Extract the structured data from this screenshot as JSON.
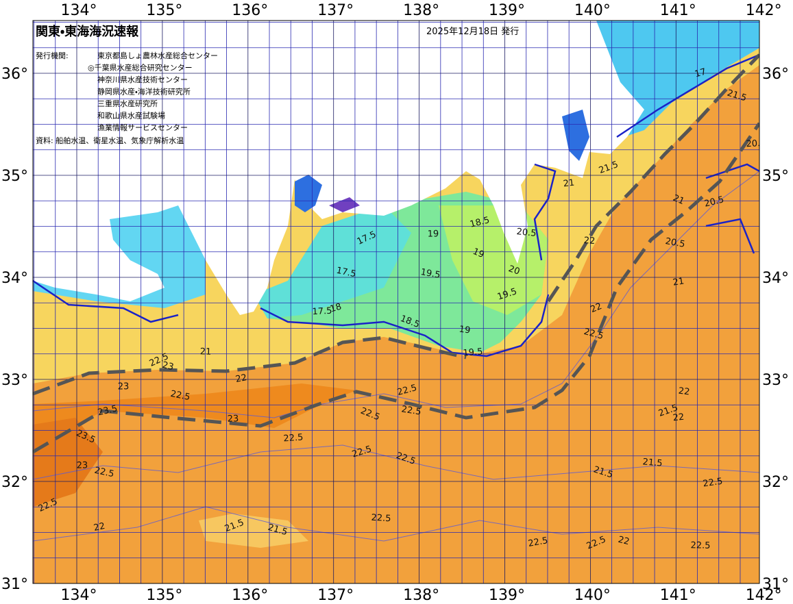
{
  "header": {
    "title": "関東・東海海況速報",
    "date": "2025年12月18日 発行"
  },
  "issuers": {
    "label": "発行機関:",
    "items": [
      "東京都島しょ農林水産総合センター",
      "◎千葉県水産総合研究センター",
      "神奈川県水産技術センター",
      "静岡県水産・海洋技術研究所",
      "三重県水産研究所",
      "和歌山県水産試験場",
      "漁業情報サービスセンター"
    ]
  },
  "source": "資料: 船舶水温、衛星水温、気象庁解析水温",
  "axes": {
    "lon_labels": [
      "134°",
      "135°",
      "136°",
      "137°",
      "138°",
      "139°",
      "140°",
      "141°",
      "142°"
    ],
    "lat_labels": [
      "36°",
      "35°",
      "34°",
      "33°",
      "32°",
      "31°"
    ]
  },
  "contour_labels": [
    "17.5",
    "17.5",
    "19",
    "18.5",
    "19",
    "19.5",
    "17.5",
    "18",
    "18.5",
    "19",
    "19.5",
    "19.5",
    "20",
    "20.5",
    "21",
    "21.5",
    "21.5",
    "22",
    "21",
    "22",
    "22.5",
    "21",
    "22",
    "22.5",
    "23",
    "23",
    "23.5",
    "23.5",
    "22.5",
    "23",
    "22.5",
    "22.5",
    "22.5",
    "22.5",
    "22.5",
    "22.5",
    "22",
    "22",
    "21.5",
    "21.5",
    "21.5",
    "22.5",
    "21.5",
    "21.5",
    "22.5",
    "22.5",
    "22.5",
    "22",
    "22.5",
    "22",
    "22.5",
    "22.5",
    "23",
    "20.5",
    "21",
    "20.5",
    "20.5",
    "17"
  ]
}
